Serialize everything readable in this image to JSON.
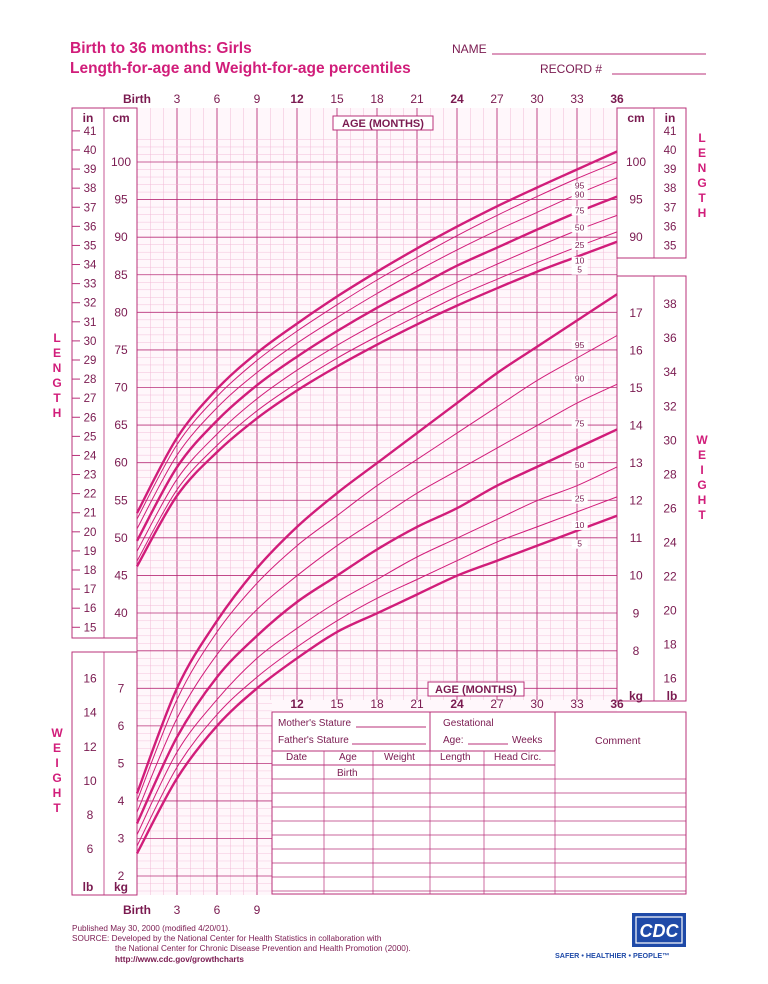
{
  "header": {
    "title_line1": "Birth to 36 months: Girls",
    "title_line2": "Length-for-age and Weight-for-age percentiles",
    "name_label": "NAME",
    "record_label": "RECORD #"
  },
  "colors": {
    "primary": "#d11d7a",
    "grid_minor": "#f2b8d6",
    "grid_major": "#b9307a",
    "text": "#7a1a50",
    "cdc_blue": "#1f4aa8"
  },
  "chart_data": [
    {
      "type": "line",
      "title": "Length-for-age percentiles",
      "xlabel": "AGE (MONTHS)",
      "ylabel": "LENGTH",
      "units": [
        "in",
        "cm"
      ],
      "xlim": [
        0,
        36
      ],
      "ylim": [
        38,
        104
      ],
      "x": [
        0,
        3,
        6,
        9,
        12,
        15,
        18,
        21,
        24,
        27,
        30,
        33,
        36
      ],
      "series": [
        {
          "name": "95",
          "values": [
            53.3,
            63.3,
            69.8,
            74.6,
            78.5,
            82.1,
            85.4,
            88.5,
            91.4,
            94.1,
            96.6,
            99.0,
            101.4
          ]
        },
        {
          "name": "90",
          "values": [
            52.5,
            62.4,
            68.8,
            73.6,
            77.5,
            81.0,
            84.3,
            87.3,
            90.2,
            92.9,
            95.4,
            97.8,
            100.0
          ]
        },
        {
          "name": "75",
          "values": [
            51.2,
            61.0,
            67.3,
            72.0,
            75.9,
            79.3,
            82.5,
            85.5,
            88.3,
            90.9,
            93.3,
            95.7,
            97.9
          ]
        },
        {
          "name": "50",
          "values": [
            49.6,
            59.4,
            65.6,
            70.3,
            74.1,
            77.5,
            80.6,
            83.4,
            86.2,
            88.6,
            91.0,
            93.3,
            95.4
          ]
        },
        {
          "name": "25",
          "values": [
            48.2,
            57.8,
            63.8,
            68.5,
            72.3,
            75.6,
            78.6,
            81.4,
            84.0,
            86.4,
            88.7,
            90.9,
            92.9
          ]
        },
        {
          "name": "10",
          "values": [
            46.9,
            56.4,
            62.3,
            66.9,
            70.6,
            73.9,
            76.8,
            79.5,
            82.1,
            84.4,
            86.6,
            88.7,
            90.7
          ]
        },
        {
          "name": "5",
          "values": [
            46.2,
            55.6,
            61.4,
            65.9,
            69.6,
            72.8,
            75.7,
            78.4,
            80.9,
            83.2,
            85.4,
            87.4,
            89.4
          ]
        }
      ]
    },
    {
      "type": "line",
      "title": "Weight-for-age percentiles",
      "xlabel": "AGE (MONTHS)",
      "ylabel": "WEIGHT",
      "units": [
        "kg",
        "lb"
      ],
      "xlim": [
        0,
        36
      ],
      "ylim": [
        1.6,
        17.6
      ],
      "x": [
        0,
        3,
        6,
        9,
        12,
        15,
        18,
        21,
        24,
        27,
        30,
        33,
        36
      ],
      "series": [
        {
          "name": "95",
          "values": [
            4.2,
            7.0,
            8.8,
            10.2,
            11.3,
            12.2,
            13.0,
            13.8,
            14.6,
            15.4,
            16.1,
            16.8,
            17.5
          ]
        },
        {
          "name": "90",
          "values": [
            4.0,
            6.7,
            8.5,
            9.8,
            10.8,
            11.6,
            12.4,
            13.1,
            13.8,
            14.5,
            15.2,
            15.8,
            16.4
          ]
        },
        {
          "name": "75",
          "values": [
            3.7,
            6.2,
            7.9,
            9.1,
            10.0,
            10.8,
            11.5,
            12.2,
            12.8,
            13.4,
            14.0,
            14.6,
            15.1
          ]
        },
        {
          "name": "50",
          "values": [
            3.4,
            5.7,
            7.3,
            8.4,
            9.3,
            10.0,
            10.7,
            11.3,
            11.8,
            12.4,
            12.9,
            13.4,
            13.9
          ]
        },
        {
          "name": "25",
          "values": [
            3.1,
            5.3,
            6.7,
            7.8,
            8.6,
            9.3,
            9.9,
            10.5,
            11.0,
            11.5,
            12.0,
            12.4,
            12.9
          ]
        },
        {
          "name": "10",
          "values": [
            2.8,
            4.9,
            6.3,
            7.3,
            8.1,
            8.8,
            9.4,
            9.9,
            10.4,
            10.9,
            11.3,
            11.7,
            12.1
          ]
        },
        {
          "name": "5",
          "values": [
            2.6,
            4.6,
            6.0,
            7.0,
            7.8,
            8.5,
            9.0,
            9.5,
            10.0,
            10.4,
            10.8,
            11.2,
            11.6
          ]
        }
      ]
    }
  ],
  "axes": {
    "age_top_ticks": [
      "Birth",
      "3",
      "6",
      "9",
      "12",
      "15",
      "18",
      "21",
      "24",
      "27",
      "30",
      "33",
      "36"
    ],
    "age_middle_ticks": [
      "12",
      "15",
      "18",
      "21",
      "24",
      "27",
      "30",
      "33",
      "36"
    ],
    "age_bottom_ticks": [
      "Birth",
      "3",
      "6",
      "9"
    ],
    "age_label": "AGE (MONTHS)",
    "length_letters": [
      "L",
      "E",
      "N",
      "G",
      "T",
      "H"
    ],
    "weight_letters": [
      "W",
      "E",
      "I",
      "G",
      "H",
      "T"
    ],
    "unit_in": "in",
    "unit_cm": "cm",
    "unit_kg": "kg",
    "unit_lb": "lb"
  },
  "form": {
    "mothers_stature": "Mother's Stature",
    "fathers_stature": "Father's Stature",
    "gestational": "Gestational",
    "age": "Age:",
    "weeks": "Weeks",
    "comment": "Comment",
    "columns": [
      "Date",
      "Age",
      "Weight",
      "Length",
      "Head Circ."
    ],
    "birth": "Birth"
  },
  "footer": {
    "published": "Published May 30, 2000 (modified 4/20/01).",
    "source1": "SOURCE: Developed by the National Center for Health Statistics in collaboration with",
    "source2": "the National Center for Chronic Disease Prevention and Health Promotion (2000).",
    "url": "http://www.cdc.gov/growthcharts",
    "logo_text": "CDC",
    "tagline": "SAFER • HEALTHIER • PEOPLE™"
  }
}
